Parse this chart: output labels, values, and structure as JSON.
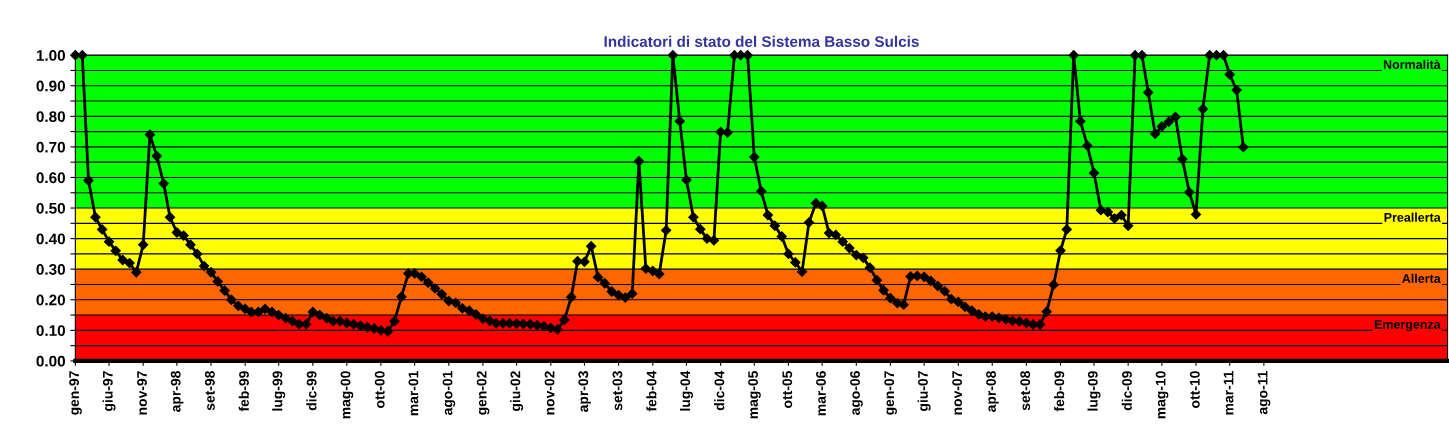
{
  "chart_data": {
    "type": "line",
    "title": "Indicatori di stato del Sistema Basso Sulcis",
    "x": [
      "1997-01",
      "1997-02",
      "1997-03",
      "1997-04",
      "1997-05",
      "1997-06",
      "1997-07",
      "1997-08",
      "1997-09",
      "1997-10",
      "1997-11",
      "1997-12",
      "1998-01",
      "1998-02",
      "1998-03",
      "1998-04",
      "1998-05",
      "1998-06",
      "1998-07",
      "1998-08",
      "1998-09",
      "1998-10",
      "1998-11",
      "1998-12",
      "1999-01",
      "1999-02",
      "1999-03",
      "1999-04",
      "1999-05",
      "1999-06",
      "1999-07",
      "1999-08",
      "1999-09",
      "1999-10",
      "1999-11",
      "1999-12",
      "2000-01",
      "2000-02",
      "2000-03",
      "2000-04",
      "2000-05",
      "2000-06",
      "2000-07",
      "2000-08",
      "2000-09",
      "2000-10",
      "2000-11",
      "2000-12",
      "2001-01",
      "2001-02",
      "2001-03",
      "2001-04",
      "2001-05",
      "2001-06",
      "2001-07",
      "2001-08",
      "2001-09",
      "2001-10",
      "2001-11",
      "2001-12",
      "2002-01",
      "2002-02",
      "2002-03",
      "2002-04",
      "2002-05",
      "2002-06",
      "2002-07",
      "2002-08",
      "2002-09",
      "2002-10",
      "2002-11",
      "2002-12",
      "2003-01",
      "2003-02",
      "2003-03",
      "2003-04",
      "2003-05",
      "2003-06",
      "2003-07",
      "2003-08",
      "2003-09",
      "2003-10",
      "2003-11",
      "2003-12",
      "2004-01",
      "2004-02",
      "2004-03",
      "2004-04",
      "2004-05",
      "2004-06",
      "2004-07",
      "2004-08",
      "2004-09",
      "2004-10",
      "2004-11",
      "2004-12",
      "2005-01",
      "2005-02",
      "2005-03",
      "2005-04",
      "2005-05",
      "2005-06",
      "2005-07",
      "2005-08",
      "2005-09",
      "2005-10",
      "2005-11",
      "2005-12",
      "2006-01",
      "2006-02",
      "2006-03",
      "2006-04",
      "2006-05",
      "2006-06",
      "2006-07",
      "2006-08",
      "2006-09",
      "2006-10",
      "2006-11",
      "2006-12",
      "2007-01",
      "2007-02",
      "2007-03",
      "2007-04",
      "2007-05",
      "2007-06",
      "2007-07",
      "2007-08",
      "2007-09",
      "2007-10",
      "2007-11",
      "2007-12",
      "2008-01",
      "2008-02",
      "2008-03",
      "2008-04",
      "2008-05",
      "2008-06",
      "2008-07",
      "2008-08",
      "2008-09",
      "2008-10",
      "2008-11",
      "2008-12",
      "2009-01",
      "2009-02",
      "2009-03",
      "2009-04",
      "2009-05",
      "2009-06",
      "2009-07",
      "2009-08",
      "2009-09",
      "2009-10",
      "2009-11",
      "2009-12",
      "2010-01",
      "2010-02",
      "2010-03",
      "2010-04",
      "2010-05",
      "2010-06",
      "2010-07",
      "2010-08",
      "2010-09",
      "2010-10",
      "2010-11",
      "2010-12",
      "2011-01",
      "2011-02",
      "2011-03",
      "2011-04",
      "2011-05"
    ],
    "series": [
      {
        "color": "#000000",
        "values": [
          1.0,
          1.0,
          0.59,
          0.47,
          0.43,
          0.39,
          0.36,
          0.33,
          0.32,
          0.29,
          0.38,
          0.74,
          0.67,
          0.58,
          0.47,
          0.42,
          0.41,
          0.38,
          0.35,
          0.31,
          0.29,
          0.26,
          0.23,
          0.2,
          0.18,
          0.17,
          0.16,
          0.16,
          0.17,
          0.16,
          0.15,
          0.14,
          0.13,
          0.12,
          0.12,
          0.16,
          0.15,
          0.14,
          0.13,
          0.13,
          0.124,
          0.12,
          0.115,
          0.11,
          0.106,
          0.1,
          0.097,
          0.13,
          0.21,
          0.286,
          0.286,
          0.275,
          0.256,
          0.237,
          0.218,
          0.196,
          0.19,
          0.172,
          0.164,
          0.152,
          0.138,
          0.131,
          0.123,
          0.123,
          0.123,
          0.122,
          0.121,
          0.12,
          0.117,
          0.113,
          0.108,
          0.103,
          0.134,
          0.209,
          0.326,
          0.324,
          0.375,
          0.274,
          0.254,
          0.227,
          0.215,
          0.207,
          0.22,
          0.653,
          0.302,
          0.294,
          0.284,
          0.427,
          1.0,
          0.784,
          0.592,
          0.47,
          0.431,
          0.4,
          0.394,
          0.749,
          0.747,
          1.0,
          1.0,
          1.0,
          0.667,
          0.555,
          0.477,
          0.442,
          0.407,
          0.35,
          0.322,
          0.292,
          0.453,
          0.516,
          0.507,
          0.418,
          0.412,
          0.39,
          0.369,
          0.346,
          0.337,
          0.305,
          0.264,
          0.231,
          0.205,
          0.189,
          0.184,
          0.276,
          0.278,
          0.275,
          0.262,
          0.245,
          0.228,
          0.202,
          0.193,
          0.177,
          0.164,
          0.152,
          0.145,
          0.145,
          0.141,
          0.136,
          0.131,
          0.129,
          0.124,
          0.119,
          0.119,
          0.161,
          0.249,
          0.361,
          0.43,
          1.0,
          0.784,
          0.704,
          0.615,
          0.493,
          0.487,
          0.466,
          0.477,
          0.442,
          1.0,
          1.0,
          0.878,
          0.743,
          0.767,
          0.782,
          0.798,
          0.66,
          0.552,
          0.479,
          0.824,
          1.0,
          1.0,
          1.0,
          0.937,
          0.886,
          0.699
        ]
      }
    ],
    "marker": "diamond",
    "line_style": "solid",
    "grid": "y",
    "legend": false,
    "xlim": [
      "1997-01",
      "2013-11"
    ],
    "xticks": [
      {
        "value": "1997-01",
        "label": "gen-97"
      },
      {
        "value": "1997-06",
        "label": "giu-97"
      },
      {
        "value": "1997-11",
        "label": "nov-97"
      },
      {
        "value": "1998-04",
        "label": "apr-98"
      },
      {
        "value": "1998-09",
        "label": "set-98"
      },
      {
        "value": "1999-02",
        "label": "feb-99"
      },
      {
        "value": "1999-07",
        "label": "lug-99"
      },
      {
        "value": "1999-12",
        "label": "dic-99"
      },
      {
        "value": "2000-05",
        "label": "mag-00"
      },
      {
        "value": "2000-10",
        "label": "ott-00"
      },
      {
        "value": "2001-03",
        "label": "mar-01"
      },
      {
        "value": "2001-08",
        "label": "ago-01"
      },
      {
        "value": "2002-01",
        "label": "gen-02"
      },
      {
        "value": "2002-06",
        "label": "giu-02"
      },
      {
        "value": "2002-11",
        "label": "nov-02"
      },
      {
        "value": "2003-04",
        "label": "apr-03"
      },
      {
        "value": "2003-09",
        "label": "set-03"
      },
      {
        "value": "2004-02",
        "label": "feb-04"
      },
      {
        "value": "2004-07",
        "label": "lug-04"
      },
      {
        "value": "2004-12",
        "label": "dic-04"
      },
      {
        "value": "2005-05",
        "label": "mag-05"
      },
      {
        "value": "2005-10",
        "label": "ott-05"
      },
      {
        "value": "2006-03",
        "label": "mar-06"
      },
      {
        "value": "2006-08",
        "label": "ago-06"
      },
      {
        "value": "2007-01",
        "label": "gen-07"
      },
      {
        "value": "2007-06",
        "label": "giu-07"
      },
      {
        "value": "2007-11",
        "label": "nov-07"
      },
      {
        "value": "2008-04",
        "label": "apr-08"
      },
      {
        "value": "2008-09",
        "label": "set-08"
      },
      {
        "value": "2009-02",
        "label": "feb-09"
      },
      {
        "value": "2009-07",
        "label": "lug-09"
      },
      {
        "value": "2009-12",
        "label": "dic-09"
      },
      {
        "value": "2010-05",
        "label": "mag-10"
      },
      {
        "value": "2010-10",
        "label": "ott-10"
      },
      {
        "value": "2011-03",
        "label": "mar-11"
      },
      {
        "value": "2011-08",
        "label": "ago-11"
      }
    ],
    "ylim": [
      0,
      1
    ],
    "yticks": [
      {
        "value": 0,
        "label": "0.00"
      },
      {
        "value": 0.05,
        "label": null
      },
      {
        "value": 0.1,
        "label": "0.10"
      },
      {
        "value": 0.15,
        "label": null
      },
      {
        "value": 0.2,
        "label": "0.20"
      },
      {
        "value": 0.25,
        "label": null
      },
      {
        "value": 0.3,
        "label": "0.30"
      },
      {
        "value": 0.35,
        "label": null
      },
      {
        "value": 0.4,
        "label": "0.40"
      },
      {
        "value": 0.45,
        "label": null
      },
      {
        "value": 0.5,
        "label": "0.50"
      },
      {
        "value": 0.55,
        "label": null
      },
      {
        "value": 0.6,
        "label": "0.60"
      },
      {
        "value": 0.65,
        "label": null
      },
      {
        "value": 0.7,
        "label": "0.70"
      },
      {
        "value": 0.75,
        "label": null
      },
      {
        "value": 0.8,
        "label": "0.80"
      },
      {
        "value": 0.85,
        "label": null
      },
      {
        "value": 0.9,
        "label": "0.90"
      },
      {
        "value": 0.95,
        "label": null
      },
      {
        "value": 1,
        "label": "1.00"
      }
    ],
    "bands": [
      {
        "axis": "y",
        "from": 0.5,
        "to": 1,
        "label": "Normalità",
        "color": "#00ff00"
      },
      {
        "axis": "y",
        "from": 0.3,
        "to": 0.5,
        "label": "Preallerta",
        "color": "#ffff00"
      },
      {
        "axis": "y",
        "from": 0.15,
        "to": 0.3,
        "label": "Allerta",
        "color": "#ff6600"
      },
      {
        "axis": "y",
        "from": 0,
        "to": 0.15,
        "label": "Emergenza",
        "color": "#ff0000"
      }
    ]
  }
}
